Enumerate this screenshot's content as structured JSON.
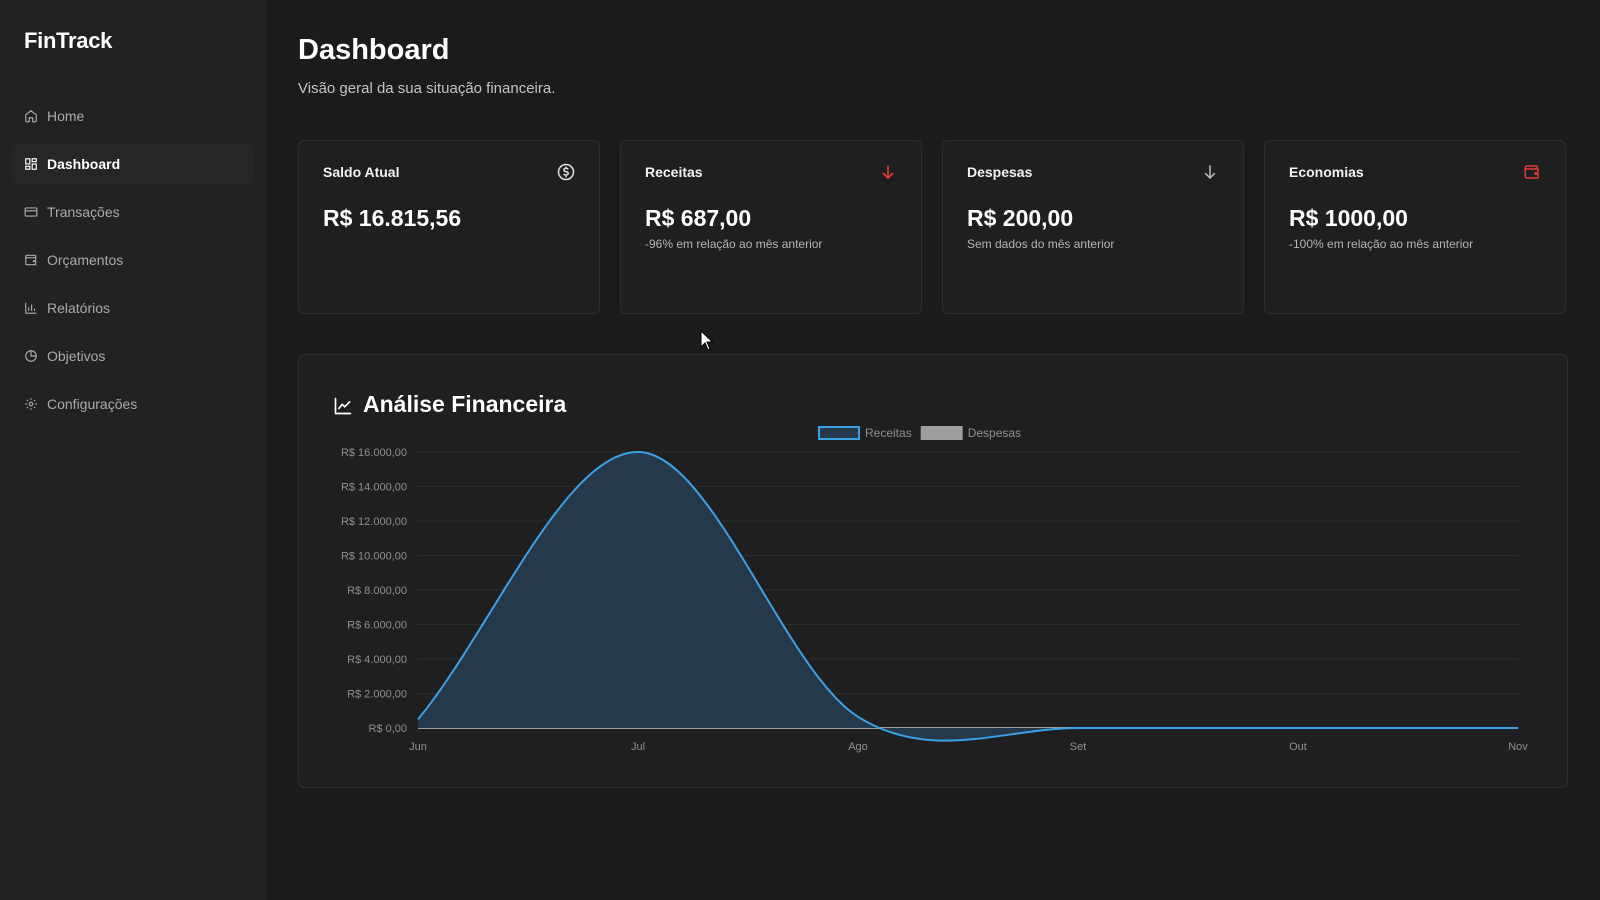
{
  "app": {
    "brand": "FinTrack"
  },
  "sidebar": {
    "items": [
      {
        "label": "Home",
        "icon": "home-icon",
        "active": false
      },
      {
        "label": "Dashboard",
        "icon": "grid-icon",
        "active": true
      },
      {
        "label": "Transações",
        "icon": "card-icon",
        "active": false
      },
      {
        "label": "Orçamentos",
        "icon": "wallet-icon",
        "active": false
      },
      {
        "label": "Relatórios",
        "icon": "bar-chart-icon",
        "active": false
      },
      {
        "label": "Objetivos",
        "icon": "pie-chart-icon",
        "active": false
      },
      {
        "label": "Configurações",
        "icon": "gear-icon",
        "active": false
      }
    ]
  },
  "header": {
    "title": "Dashboard",
    "subtitle": "Visão geral da sua situação financeira."
  },
  "cards": [
    {
      "title": "Saldo Atual",
      "value": "R$ 16.815,56",
      "note": "",
      "icon": "dollar-circle-icon",
      "icon_color": "#e0e0e0"
    },
    {
      "title": "Receitas",
      "value": "R$ 687,00",
      "note": "-96% em relação ao mês anterior",
      "icon": "arrow-down-icon",
      "icon_color": "#e53935"
    },
    {
      "title": "Despesas",
      "value": "R$ 200,00",
      "note": "Sem dados do mês anterior",
      "icon": "arrow-down-icon",
      "icon_color": "#bdbdbd"
    },
    {
      "title": "Economias",
      "value": "R$ 1000,00",
      "note": "-100% em relação ao mês anterior",
      "icon": "wallet-icon",
      "icon_color": "#e53935"
    }
  ],
  "chart_section": {
    "title": "Análise Financeira",
    "icon": "line-chart-icon"
  },
  "chart_data": {
    "type": "area",
    "categories": [
      "Jun",
      "Jul",
      "Ago",
      "Set",
      "Out",
      "Nov"
    ],
    "series": [
      {
        "name": "Receitas",
        "values": [
          500,
          16000,
          650,
          0,
          0,
          0
        ],
        "color": "#3ba0e6",
        "fill": "#26394a"
      },
      {
        "name": "Despesas",
        "values": [
          0,
          0,
          0,
          0,
          0,
          0
        ],
        "color": "#9e9e9e",
        "fill": "#8a8a8a"
      }
    ],
    "ylim": [
      0,
      16000
    ],
    "yticks": [
      "R$ 0,00",
      "R$ 2.000,00",
      "R$ 4.000,00",
      "R$ 6.000,00",
      "R$ 8.000,00",
      "R$ 10.000,00",
      "R$ 12.000,00",
      "R$ 14.000,00",
      "R$ 16.000,00"
    ],
    "ytick_values": [
      0,
      2000,
      4000,
      6000,
      8000,
      10000,
      12000,
      14000,
      16000
    ],
    "grid": true,
    "legend": "top-center"
  }
}
